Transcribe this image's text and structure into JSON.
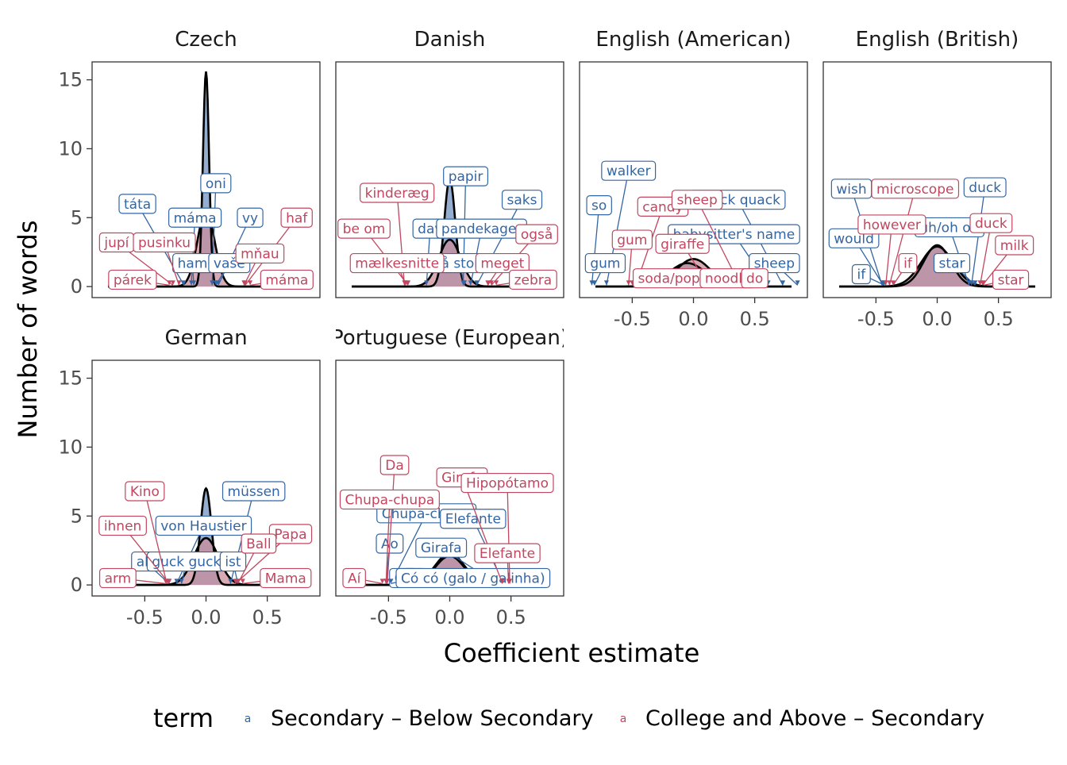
{
  "colors": {
    "secondary": "#3366a3",
    "college": "#c0475f",
    "secondary_fill": "#8fa9cb",
    "college_fill": "#c98d9b"
  },
  "chart_data": {
    "type": "density",
    "xlabel": "Coefficient estimate",
    "ylabel": "Number of words",
    "x_ticks": [
      "-0.5",
      "0.0",
      "0.5"
    ],
    "y_ticks": [
      "0",
      "5",
      "10",
      "15"
    ],
    "xlim": [
      -0.93,
      0.93
    ],
    "ylim": [
      -0.8,
      16.3
    ],
    "legend": {
      "title": "term",
      "key": "a",
      "position": "bottom",
      "entries": [
        {
          "name": "Secondary – Below Secondary",
          "color": "#3366a3"
        },
        {
          "name": "College and Above – Secondary",
          "color": "#c0475f"
        }
      ]
    },
    "panels": [
      {
        "name": "Czech",
        "density": {
          "secondary": {
            "mean": 0.0,
            "sd": 0.025,
            "peak": 15.6
          },
          "college": {
            "mean": 0.0,
            "sd": 0.07,
            "peak": 5.5
          }
        },
        "labels": [
          {
            "text": "táta",
            "term": "secondary",
            "x": -0.56,
            "y": 6.0,
            "px": -0.18,
            "py": 0.1
          },
          {
            "text": "oni",
            "term": "secondary",
            "x": 0.08,
            "y": 7.5,
            "px": 0.05,
            "py": 0.1
          },
          {
            "text": "máma",
            "term": "secondary",
            "x": -0.09,
            "y": 5.0,
            "px": -0.12,
            "py": 0.1
          },
          {
            "text": "vy",
            "term": "secondary",
            "x": 0.36,
            "y": 5.0,
            "px": 0.1,
            "py": 0.1
          },
          {
            "text": "ham",
            "term": "secondary",
            "x": -0.11,
            "y": 1.7,
            "px": -0.1,
            "py": 0.1
          },
          {
            "text": "vaše",
            "term": "secondary",
            "x": 0.19,
            "y": 1.7,
            "px": 0.08,
            "py": 0.1
          },
          {
            "text": "haf",
            "term": "college",
            "x": 0.74,
            "y": 5.0,
            "px": 0.32,
            "py": 0.1
          },
          {
            "text": "jupí",
            "term": "college",
            "x": -0.73,
            "y": 3.2,
            "px": -0.27,
            "py": 0.1
          },
          {
            "text": "pusinku",
            "term": "college",
            "x": -0.34,
            "y": 3.2,
            "px": -0.22,
            "py": 0.1
          },
          {
            "text": "mňau",
            "term": "college",
            "x": 0.44,
            "y": 2.4,
            "px": 0.31,
            "py": 0.1
          },
          {
            "text": "párek",
            "term": "college",
            "x": -0.6,
            "y": 0.5,
            "px": -0.3,
            "py": 0.1
          },
          {
            "text": "máma",
            "term": "college",
            "x": 0.66,
            "y": 0.5,
            "px": 0.36,
            "py": 0.1
          }
        ]
      },
      {
        "name": "Danish",
        "density": {
          "secondary": {
            "mean": 0.0,
            "sd": 0.045,
            "peak": 7.8
          },
          "college": {
            "mean": 0.0,
            "sd": 0.09,
            "peak": 3.4
          }
        },
        "labels": [
          {
            "text": "papir",
            "term": "secondary",
            "x": 0.13,
            "y": 8.0,
            "px": 0.11,
            "py": 0.1
          },
          {
            "text": "saks",
            "term": "secondary",
            "x": 0.59,
            "y": 6.3,
            "px": 0.22,
            "py": 0.1
          },
          {
            "text": "dav",
            "term": "secondary",
            "x": -0.16,
            "y": 4.2,
            "px": -0.19,
            "py": 0.1
          },
          {
            "text": "pandekager",
            "term": "secondary",
            "x": 0.26,
            "y": 4.2,
            "px": 0.17,
            "py": 0.1
          },
          {
            "text": "så stor!",
            "term": "secondary",
            "x": 0.08,
            "y": 1.7,
            "px": 0.12,
            "py": 0.1
          },
          {
            "text": "kinderæg",
            "term": "college",
            "x": -0.43,
            "y": 6.8,
            "px": -0.37,
            "py": 0.1
          },
          {
            "text": "be om",
            "term": "college",
            "x": -0.7,
            "y": 4.2,
            "px": -0.34,
            "py": 0.1
          },
          {
            "text": "også",
            "term": "college",
            "x": 0.71,
            "y": 3.8,
            "px": 0.34,
            "py": 0.1
          },
          {
            "text": "mælkesnitte",
            "term": "college",
            "x": -0.43,
            "y": 1.7,
            "px": -0.36,
            "py": 0.1
          },
          {
            "text": "meget",
            "term": "college",
            "x": 0.43,
            "y": 1.7,
            "px": 0.31,
            "py": 0.1
          },
          {
            "text": "zebra",
            "term": "college",
            "x": 0.68,
            "y": 0.5,
            "px": 0.38,
            "py": 0.1
          }
        ]
      },
      {
        "name": "English (American)",
        "density": {
          "secondary": {
            "mean": -0.05,
            "sd": 0.15,
            "peak": 1.7
          },
          "college": {
            "mean": 0.0,
            "sd": 0.14,
            "peak": 2.0
          }
        },
        "labels": [
          {
            "text": "walker",
            "term": "secondary",
            "x": -0.53,
            "y": 8.4,
            "px": -0.71,
            "py": 0.1
          },
          {
            "text": "so",
            "term": "secondary",
            "x": -0.77,
            "y": 5.9,
            "px": -0.83,
            "py": 0.1
          },
          {
            "text": "quack quack",
            "term": "secondary",
            "x": 0.36,
            "y": 6.3,
            "px": 0.73,
            "py": 0.1
          },
          {
            "text": "babysitter's name",
            "term": "secondary",
            "x": 0.33,
            "y": 3.8,
            "px": 0.61,
            "py": 0.1
          },
          {
            "text": "gum",
            "term": "secondary",
            "x": -0.72,
            "y": 1.7,
            "px": -0.81,
            "py": 0.1
          },
          {
            "text": "sheep",
            "term": "secondary",
            "x": 0.66,
            "y": 1.7,
            "px": 0.85,
            "py": 0.1
          },
          {
            "text": "candy",
            "term": "college",
            "x": -0.25,
            "y": 5.8,
            "px": -0.47,
            "py": 0.1
          },
          {
            "text": "sheep",
            "term": "college",
            "x": 0.03,
            "y": 6.3,
            "px": 0.38,
            "py": 0.1
          },
          {
            "text": "gum",
            "term": "college",
            "x": -0.5,
            "y": 3.4,
            "px": -0.53,
            "py": 0.1
          },
          {
            "text": "giraffe",
            "term": "college",
            "x": -0.09,
            "y": 3.1,
            "px": 0.12,
            "py": 0.1
          },
          {
            "text": "soda/pop",
            "term": "college",
            "x": -0.2,
            "y": 0.6,
            "px": -0.5,
            "py": 0.1
          },
          {
            "text": "noodle",
            "term": "college",
            "x": 0.28,
            "y": 0.6,
            "px": 0.41,
            "py": 0.1
          },
          {
            "text": "do",
            "term": "college",
            "x": 0.5,
            "y": 0.6,
            "px": 0.47,
            "py": 0.1
          }
        ]
      },
      {
        "name": "English (British)",
        "density": {
          "secondary": {
            "mean": 0.0,
            "sd": 0.11,
            "peak": 3.0
          },
          "college": {
            "mean": 0.0,
            "sd": 0.13,
            "peak": 2.9
          }
        },
        "labels": [
          {
            "text": "wish",
            "term": "secondary",
            "x": -0.7,
            "y": 7.1,
            "px": -0.45,
            "py": 0.1
          },
          {
            "text": "duck",
            "term": "secondary",
            "x": 0.39,
            "y": 7.2,
            "px": 0.28,
            "py": 0.1
          },
          {
            "text": "would",
            "term": "secondary",
            "x": -0.68,
            "y": 3.5,
            "px": -0.44,
            "py": 0.1
          },
          {
            "text": "uh/oh oh",
            "term": "secondary",
            "x": 0.1,
            "y": 4.3,
            "px": 0.26,
            "py": 0.1
          },
          {
            "text": "if",
            "term": "secondary",
            "x": -0.62,
            "y": 0.9,
            "px": -0.43,
            "py": 0.1
          },
          {
            "text": "star",
            "term": "secondary",
            "x": 0.12,
            "y": 1.7,
            "px": 0.31,
            "py": 0.1
          },
          {
            "text": "microscope",
            "term": "college",
            "x": -0.18,
            "y": 7.1,
            "px": -0.39,
            "py": 0.1
          },
          {
            "text": "however",
            "term": "college",
            "x": -0.37,
            "y": 4.5,
            "px": -0.42,
            "py": 0.1
          },
          {
            "text": "duck",
            "term": "college",
            "x": 0.44,
            "y": 4.6,
            "px": 0.35,
            "py": 0.1
          },
          {
            "text": "if",
            "term": "college",
            "x": -0.24,
            "y": 1.7,
            "px": -0.36,
            "py": 0.1
          },
          {
            "text": "milk",
            "term": "college",
            "x": 0.63,
            "y": 3.0,
            "px": 0.37,
            "py": 0.1
          },
          {
            "text": "star",
            "term": "college",
            "x": 0.6,
            "y": 0.5,
            "px": 0.38,
            "py": 0.1
          }
        ]
      },
      {
        "name": "German",
        "density": {
          "secondary": {
            "mean": 0.0,
            "sd": 0.045,
            "peak": 7.0
          },
          "college": {
            "mean": 0.0,
            "sd": 0.1,
            "peak": 3.4
          }
        },
        "labels": [
          {
            "text": "müssen",
            "term": "secondary",
            "x": 0.39,
            "y": 6.8,
            "px": 0.2,
            "py": 0.1
          },
          {
            "text": "von Haustier",
            "term": "secondary",
            "x": -0.02,
            "y": 4.3,
            "px": -0.24,
            "py": 0.1
          },
          {
            "text": "ab",
            "term": "secondary",
            "x": -0.5,
            "y": 1.7,
            "px": -0.3,
            "py": 0.1
          },
          {
            "text": "guck guck",
            "term": "secondary",
            "x": -0.16,
            "y": 1.7,
            "px": -0.2,
            "py": 0.1
          },
          {
            "text": "ist",
            "term": "secondary",
            "x": 0.22,
            "y": 1.7,
            "px": 0.26,
            "py": 0.1
          },
          {
            "text": "Kino",
            "term": "college",
            "x": -0.5,
            "y": 6.8,
            "px": -0.32,
            "py": 0.1
          },
          {
            "text": "ihnen",
            "term": "college",
            "x": -0.68,
            "y": 4.3,
            "px": -0.3,
            "py": 0.1
          },
          {
            "text": "Papa",
            "term": "college",
            "x": 0.69,
            "y": 3.7,
            "px": 0.24,
            "py": 0.1
          },
          {
            "text": "Ball",
            "term": "college",
            "x": 0.43,
            "y": 3.0,
            "px": 0.26,
            "py": 0.1
          },
          {
            "text": "arm",
            "term": "college",
            "x": -0.72,
            "y": 0.5,
            "px": -0.33,
            "py": 0.1
          },
          {
            "text": "Mama",
            "term": "college",
            "x": 0.65,
            "y": 0.5,
            "px": 0.3,
            "py": 0.1
          }
        ]
      },
      {
        "name": "Portuguese (European)",
        "density": {
          "secondary": {
            "mean": 0.0,
            "sd": 0.12,
            "peak": 2.1
          },
          "college": {
            "mean": 0.0,
            "sd": 0.12,
            "peak": 2.3
          }
        },
        "labels": [
          {
            "text": "Chupa-chupa",
            "term": "secondary",
            "x": -0.19,
            "y": 5.2,
            "px": -0.48,
            "py": 0.1
          },
          {
            "text": "Elefante",
            "term": "secondary",
            "x": 0.19,
            "y": 4.8,
            "px": 0.44,
            "py": 0.1
          },
          {
            "text": "Ao",
            "term": "secondary",
            "x": -0.49,
            "y": 3.0,
            "px": -0.52,
            "py": 0.1
          },
          {
            "text": "Girafa",
            "term": "secondary",
            "x": -0.07,
            "y": 2.7,
            "px": 0.38,
            "py": 0.1
          },
          {
            "text": "Có",
            "term": "secondary",
            "x": -0.38,
            "y": 0.5,
            "px": -0.45,
            "py": 0.1
          },
          {
            "text": "Aí",
            "term": "secondary",
            "x": -0.29,
            "y": 0.5,
            "px": -0.48,
            "py": 0.1
          },
          {
            "text": "Có có (galo / galinha)",
            "term": "secondary",
            "x": 0.19,
            "y": 0.5,
            "px": 0.46,
            "py": 0.1
          },
          {
            "text": "Da",
            "term": "college",
            "x": -0.45,
            "y": 8.7,
            "px": -0.51,
            "py": 0.1
          },
          {
            "text": "Chupa-chupa",
            "term": "college",
            "x": -0.49,
            "y": 6.2,
            "px": -0.52,
            "py": 0.1
          },
          {
            "text": "Girafa",
            "term": "college",
            "x": 0.1,
            "y": 7.8,
            "px": 0.43,
            "py": 0.1
          },
          {
            "text": "Hipopótamo",
            "term": "college",
            "x": 0.47,
            "y": 7.4,
            "px": 0.49,
            "py": 0.1
          },
          {
            "text": "Elefante",
            "term": "college",
            "x": 0.47,
            "y": 2.3,
            "px": 0.48,
            "py": 0.1
          },
          {
            "text": "Aí",
            "term": "college",
            "x": -0.78,
            "y": 0.5,
            "px": -0.55,
            "py": 0.1
          }
        ]
      }
    ]
  }
}
